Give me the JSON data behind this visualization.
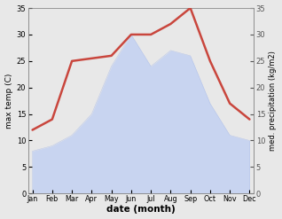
{
  "months": [
    "Jan",
    "Feb",
    "Mar",
    "Apr",
    "May",
    "Jun",
    "Jul",
    "Aug",
    "Sep",
    "Oct",
    "Nov",
    "Dec"
  ],
  "temp": [
    12,
    14,
    25,
    25.5,
    26,
    30,
    30,
    32,
    35,
    25,
    17,
    14
  ],
  "precip": [
    8,
    9,
    11,
    15,
    24,
    30,
    24,
    27,
    26,
    17,
    11,
    10
  ],
  "temp_color": "#c9463d",
  "precip_fill_color": "#c8d4f0",
  "precip_edge_color": "#b0c0e8",
  "ylim": [
    0,
    35
  ],
  "yticks": [
    0,
    5,
    10,
    15,
    20,
    25,
    30,
    35
  ],
  "ylabel_left": "max temp (C)",
  "ylabel_right": "med. precipitation (kg/m2)",
  "xlabel": "date (month)",
  "bg_color": "#ffffff",
  "fig_bg_color": "#e8e8e8",
  "temp_linewidth": 1.8,
  "right_tick_color": "#555555"
}
